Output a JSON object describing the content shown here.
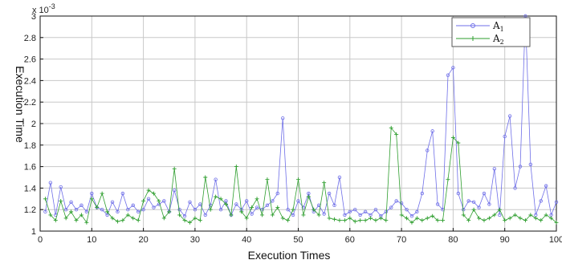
{
  "chart_data": {
    "type": "line",
    "xlabel": "Execution Times",
    "ylabel": "Execution Time",
    "y_exponent": "x 10",
    "y_exponent_power": "-3",
    "xlim": [
      0,
      100
    ],
    "ylim": [
      1,
      3
    ],
    "x_ticks": [
      0,
      10,
      20,
      30,
      40,
      50,
      60,
      70,
      80,
      90,
      100
    ],
    "y_ticks": [
      1,
      1.2,
      1.4,
      1.6,
      1.8,
      2,
      2.2,
      2.4,
      2.6,
      2.8,
      3
    ],
    "grid": true,
    "legend_position": "top-right",
    "x": [
      1,
      2,
      3,
      4,
      5,
      6,
      7,
      8,
      9,
      10,
      11,
      12,
      13,
      14,
      15,
      16,
      17,
      18,
      19,
      20,
      21,
      22,
      23,
      24,
      25,
      26,
      27,
      28,
      29,
      30,
      31,
      32,
      33,
      34,
      35,
      36,
      37,
      38,
      39,
      40,
      41,
      42,
      43,
      44,
      45,
      46,
      47,
      48,
      49,
      50,
      51,
      52,
      53,
      54,
      55,
      56,
      57,
      58,
      59,
      60,
      61,
      62,
      63,
      64,
      65,
      66,
      67,
      68,
      69,
      70,
      71,
      72,
      73,
      74,
      75,
      76,
      77,
      78,
      79,
      80,
      81,
      82,
      83,
      84,
      85,
      86,
      87,
      88,
      89,
      90,
      91,
      92,
      93,
      94,
      95,
      96,
      97,
      98,
      99,
      100
    ],
    "series": [
      {
        "name": "A",
        "name_sub": "1",
        "color": "#6f6fe8",
        "marker": "circle",
        "values": [
          1.18,
          1.45,
          1.15,
          1.41,
          1.2,
          1.27,
          1.2,
          1.24,
          1.18,
          1.35,
          1.22,
          1.2,
          1.15,
          1.27,
          1.18,
          1.35,
          1.2,
          1.24,
          1.18,
          1.2,
          1.3,
          1.22,
          1.25,
          1.28,
          1.18,
          1.38,
          1.2,
          1.14,
          1.27,
          1.2,
          1.25,
          1.15,
          1.24,
          1.48,
          1.2,
          1.28,
          1.15,
          1.25,
          1.2,
          1.28,
          1.16,
          1.22,
          1.2,
          1.24,
          1.28,
          1.35,
          2.05,
          1.2,
          1.15,
          1.28,
          1.22,
          1.35,
          1.18,
          1.24,
          1.16,
          1.35,
          1.24,
          1.5,
          1.15,
          1.18,
          1.2,
          1.15,
          1.18,
          1.15,
          1.2,
          1.14,
          1.18,
          1.22,
          1.28,
          1.26,
          1.2,
          1.14,
          1.18,
          1.35,
          1.75,
          1.93,
          1.25,
          1.2,
          2.45,
          2.52,
          1.35,
          1.2,
          1.28,
          1.27,
          1.22,
          1.35,
          1.25,
          1.58,
          1.15,
          1.88,
          2.07,
          1.4,
          1.6,
          3.0,
          1.62,
          1.15,
          1.28,
          1.42,
          1.15,
          1.27
        ]
      },
      {
        "name": "A",
        "name_sub": "2",
        "color": "#2e9e2e",
        "marker": "plus",
        "values": [
          1.3,
          1.15,
          1.1,
          1.28,
          1.12,
          1.18,
          1.1,
          1.15,
          1.08,
          1.3,
          1.22,
          1.35,
          1.18,
          1.12,
          1.09,
          1.1,
          1.15,
          1.12,
          1.1,
          1.28,
          1.38,
          1.35,
          1.28,
          1.12,
          1.18,
          1.58,
          1.15,
          1.1,
          1.08,
          1.12,
          1.1,
          1.5,
          1.2,
          1.32,
          1.3,
          1.25,
          1.15,
          1.6,
          1.18,
          1.12,
          1.22,
          1.3,
          1.15,
          1.48,
          1.15,
          1.22,
          1.12,
          1.1,
          1.2,
          1.48,
          1.15,
          1.32,
          1.2,
          1.15,
          1.45,
          1.12,
          1.11,
          1.1,
          1.1,
          1.12,
          1.09,
          1.1,
          1.1,
          1.12,
          1.1,
          1.12,
          1.1,
          1.96,
          1.9,
          1.15,
          1.12,
          1.08,
          1.12,
          1.1,
          1.12,
          1.14,
          1.1,
          1.1,
          1.48,
          1.87,
          1.82,
          1.15,
          1.1,
          1.2,
          1.12,
          1.1,
          1.12,
          1.15,
          1.2,
          1.1,
          1.12,
          1.15,
          1.12,
          1.1,
          1.15,
          1.12,
          1.1,
          1.15,
          1.12,
          1.08
        ]
      }
    ]
  }
}
